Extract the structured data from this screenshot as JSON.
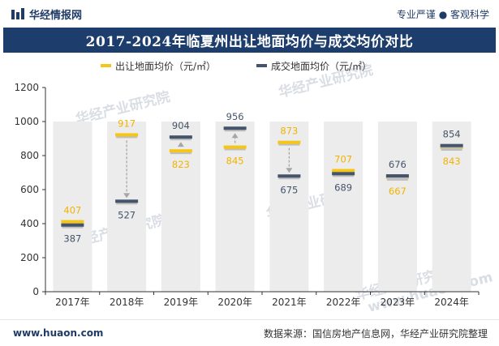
{
  "header": {
    "brand": "华经情报网",
    "slogan": "专业严谨 ● 客观科学",
    "brand_icon": "bar-logo-icon"
  },
  "watermark": "华经产业研究院",
  "watermark_url": "www.huaon.com",
  "footer": {
    "url": "www.huaon.com",
    "source": "数据来源：国信房地产信息网，华经产业研究院整理"
  },
  "colors": {
    "series1": "#f5c518",
    "series2": "#44546a",
    "label1": "#f2b300",
    "label2": "#44546a",
    "title_bg": "#1d3d6c",
    "column": "#ececec",
    "arrow": "#a6a6a6"
  },
  "chart_data": {
    "type": "floating-marker",
    "title": "2017-2024年临夏州出让地面均价与成交均价对比",
    "categories": [
      "2017年",
      "2018年",
      "2019年",
      "2020年",
      "2021年",
      "2022年",
      "2023年",
      "2024年"
    ],
    "series": [
      {
        "name": "出让地面均价（元/㎡）",
        "values": [
          407,
          917,
          823,
          845,
          873,
          707,
          667,
          843
        ]
      },
      {
        "name": "成交地面均价（元/㎡）",
        "values": [
          387,
          527,
          904,
          956,
          675,
          689,
          676,
          854
        ]
      }
    ],
    "ylim": [
      0,
      1200
    ],
    "yticks": [
      0,
      200,
      400,
      600,
      800,
      1000,
      1200
    ],
    "column_top": 1000,
    "label_pos": {
      "series1": [
        "above",
        "above",
        "below",
        "below",
        "above",
        "above",
        "below",
        "below"
      ],
      "series2": [
        "below",
        "below",
        "above",
        "above",
        "below",
        "below",
        "above",
        "above"
      ]
    },
    "arrows": [
      false,
      true,
      true,
      true,
      true,
      false,
      false,
      false
    ]
  }
}
